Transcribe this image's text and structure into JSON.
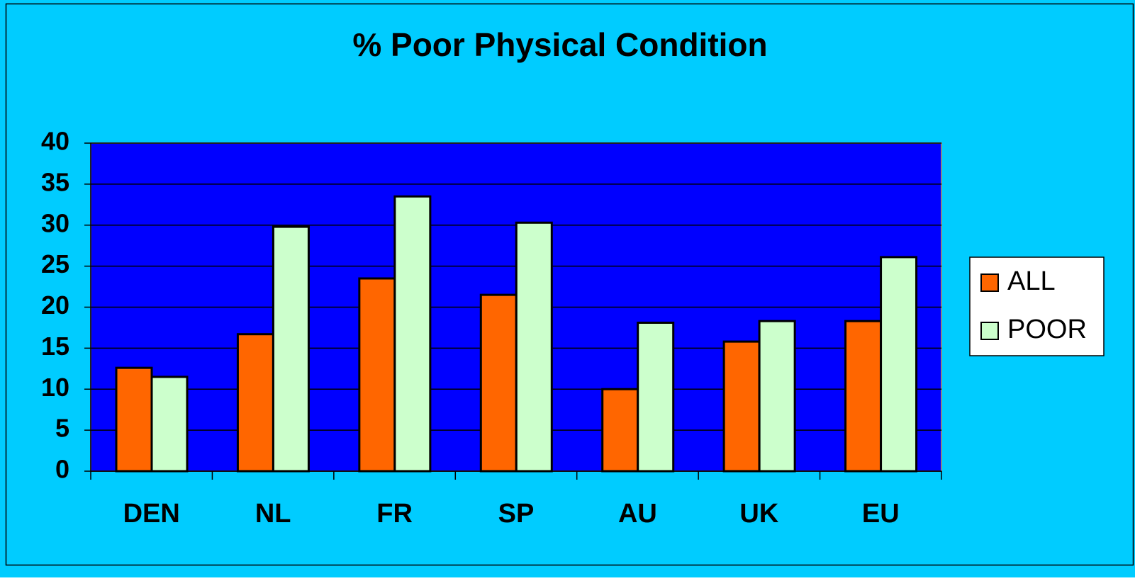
{
  "chart_data": {
    "type": "bar",
    "title": "% Poor Physical Condition",
    "categories": [
      "DEN",
      "NL",
      "FR",
      "SP",
      "AU",
      "UK",
      "EU"
    ],
    "series": [
      {
        "name": "ALL",
        "color": "#ff6600",
        "values": [
          12.6,
          16.7,
          23.5,
          21.5,
          10.0,
          15.8,
          18.3
        ]
      },
      {
        "name": "POOR",
        "color": "#ccffcc",
        "values": [
          11.5,
          29.8,
          33.5,
          30.3,
          18.1,
          18.3,
          26.1
        ]
      }
    ],
    "ylim": [
      0,
      40
    ],
    "yticks": [
      0,
      5,
      10,
      15,
      20,
      25,
      30,
      35,
      40
    ],
    "grid": true,
    "legend": "right"
  }
}
